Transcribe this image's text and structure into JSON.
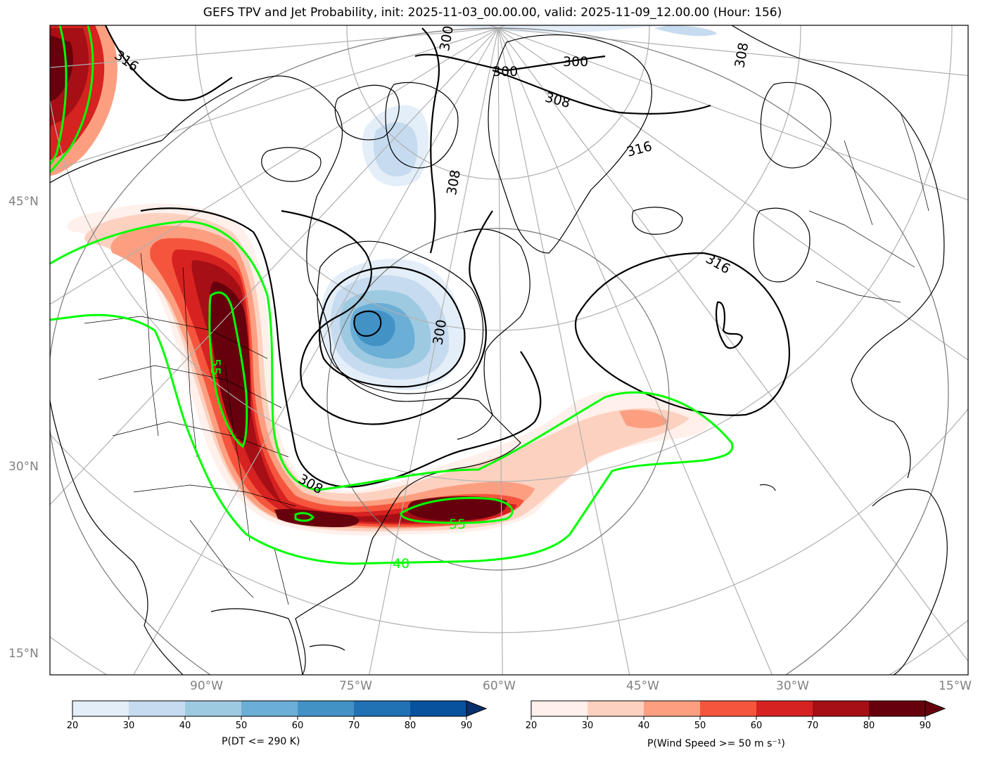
{
  "title": "GEFS TPV and Jet Probability, init: 2025-11-03_00.00.00, valid: 2025-11-09_12.00.00 (Hour: 156)",
  "lat_labels": [
    "45°N",
    "30°N",
    "15°N"
  ],
  "lon_labels": [
    "90°W",
    "75°W",
    "60°W",
    "45°W",
    "30°W",
    "15°W"
  ],
  "theta_contour_labels": [
    "300",
    "300",
    "300",
    "308",
    "316",
    "316",
    "316",
    "300",
    "308",
    "308",
    "308"
  ],
  "jet_contour_labels": [
    "55",
    "55",
    "40"
  ],
  "colorbars": {
    "dt": {
      "label": "P(DT <= 290 K)",
      "ticks": [
        "20",
        "30",
        "40",
        "50",
        "60",
        "70",
        "80",
        "90"
      ],
      "colors": [
        "#e3eef9",
        "#c6dbef",
        "#9ecae1",
        "#6baed6",
        "#4292c6",
        "#2171b5",
        "#08519c",
        "#08306b"
      ]
    },
    "wind": {
      "label": "P(Wind Speed >= 50 m s⁻¹)",
      "ticks": [
        "20",
        "30",
        "40",
        "50",
        "60",
        "70",
        "80",
        "90"
      ],
      "colors": [
        "#fff0eb",
        "#fdd1c0",
        "#fc9f81",
        "#f6553d",
        "#d62220",
        "#a50f15",
        "#67000d"
      ]
    }
  },
  "colors": {
    "jet_contour": "#00ff00",
    "theta_contour": "#000000",
    "graticule": "#b0b0b0"
  }
}
